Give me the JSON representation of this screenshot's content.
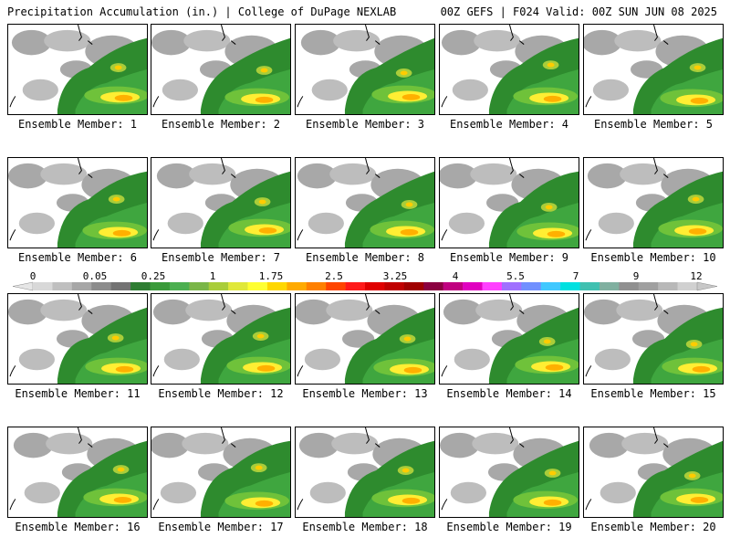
{
  "header": {
    "title": "Precipitation Accumulation (in.) | College of DuPage NEXLAB",
    "run_info": "00Z GEFS | F024 Valid: 00Z SUN JUN 08 2025"
  },
  "colorbar": {
    "tick_labels": [
      "0",
      "0.05",
      "0.25",
      "1",
      "1.75",
      "2.5",
      "3.25",
      "4",
      "5.5",
      "7",
      "9",
      "12"
    ],
    "colors": [
      "#d8d8d8",
      "#bfbfbf",
      "#a6a6a6",
      "#8c8c8c",
      "#737373",
      "#2e7d32",
      "#3a9a3a",
      "#4caf50",
      "#7ab648",
      "#a9cd3a",
      "#e0e83a",
      "#ffff33",
      "#ffd700",
      "#ffaa00",
      "#ff8000",
      "#ff4500",
      "#ff1a1a",
      "#e00000",
      "#c00000",
      "#a00000",
      "#8b0040",
      "#c00080",
      "#e000c0",
      "#ff40ff",
      "#a070ff",
      "#7090ff",
      "#40c8ff",
      "#00e0e0",
      "#40c0b0",
      "#80b0a0",
      "#909090",
      "#a0a0a0",
      "#b8b8b8",
      "#d0d0d0"
    ]
  },
  "members": [
    {
      "label": "Ensemble Member: 1"
    },
    {
      "label": "Ensemble Member: 2"
    },
    {
      "label": "Ensemble Member: 3"
    },
    {
      "label": "Ensemble Member: 4"
    },
    {
      "label": "Ensemble Member: 5"
    },
    {
      "label": "Ensemble Member: 6"
    },
    {
      "label": "Ensemble Member: 7"
    },
    {
      "label": "Ensemble Member: 8"
    },
    {
      "label": "Ensemble Member: 9"
    },
    {
      "label": "Ensemble Member: 10"
    },
    {
      "label": "Ensemble Member: 11"
    },
    {
      "label": "Ensemble Member: 12"
    },
    {
      "label": "Ensemble Member: 13"
    },
    {
      "label": "Ensemble Member: 14"
    },
    {
      "label": "Ensemble Member: 15"
    },
    {
      "label": "Ensemble Member: 16"
    },
    {
      "label": "Ensemble Member: 17"
    },
    {
      "label": "Ensemble Member: 18"
    },
    {
      "label": "Ensemble Member: 19"
    },
    {
      "label": "Ensemble Member: 20"
    }
  ]
}
